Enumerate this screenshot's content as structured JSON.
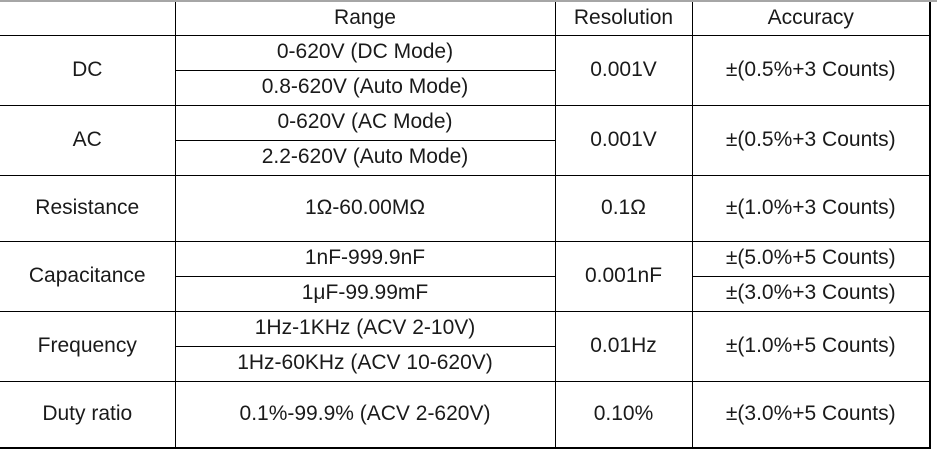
{
  "spec_table": {
    "headers": {
      "param": "",
      "range": "Range",
      "resolution": "Resolution",
      "accuracy": "Accuracy"
    },
    "rows": [
      {
        "label": "DC",
        "range1": "0-620V (DC Mode)",
        "range2": "0.8-620V (Auto Mode)",
        "resolution": "0.001V",
        "accuracy": "±(0.5%+3 Counts)"
      },
      {
        "label": "AC",
        "range1": "0-620V (AC Mode)",
        "range2": "2.2-620V (Auto Mode)",
        "resolution": "0.001V",
        "accuracy": "±(0.5%+3 Counts)"
      },
      {
        "label": "Resistance",
        "range": "1Ω-60.00MΩ",
        "resolution": "0.1Ω",
        "accuracy": "±(1.0%+3 Counts)"
      },
      {
        "label": "Capacitance",
        "range1": "1nF-999.9nF",
        "range2": "1μF-99.99mF",
        "resolution": "0.001nF",
        "accuracy1": "±(5.0%+5 Counts)",
        "accuracy2": "±(3.0%+3 Counts)"
      },
      {
        "label": "Frequency",
        "range1": "1Hz-1KHz (ACV 2-10V)",
        "range2": "1Hz-60KHz (ACV 10-620V)",
        "resolution": "0.01Hz",
        "accuracy": "±(1.0%+5 Counts)"
      },
      {
        "label": "Duty ratio",
        "range": "0.1%-99.9% (ACV 2-620V)",
        "resolution": "0.10%",
        "accuracy": "±(3.0%+5 Counts)"
      }
    ],
    "colors": {
      "border": "#000000",
      "top_rule": "#a6a6a6",
      "text": "#1a1a1a",
      "background": "#ffffff"
    }
  }
}
